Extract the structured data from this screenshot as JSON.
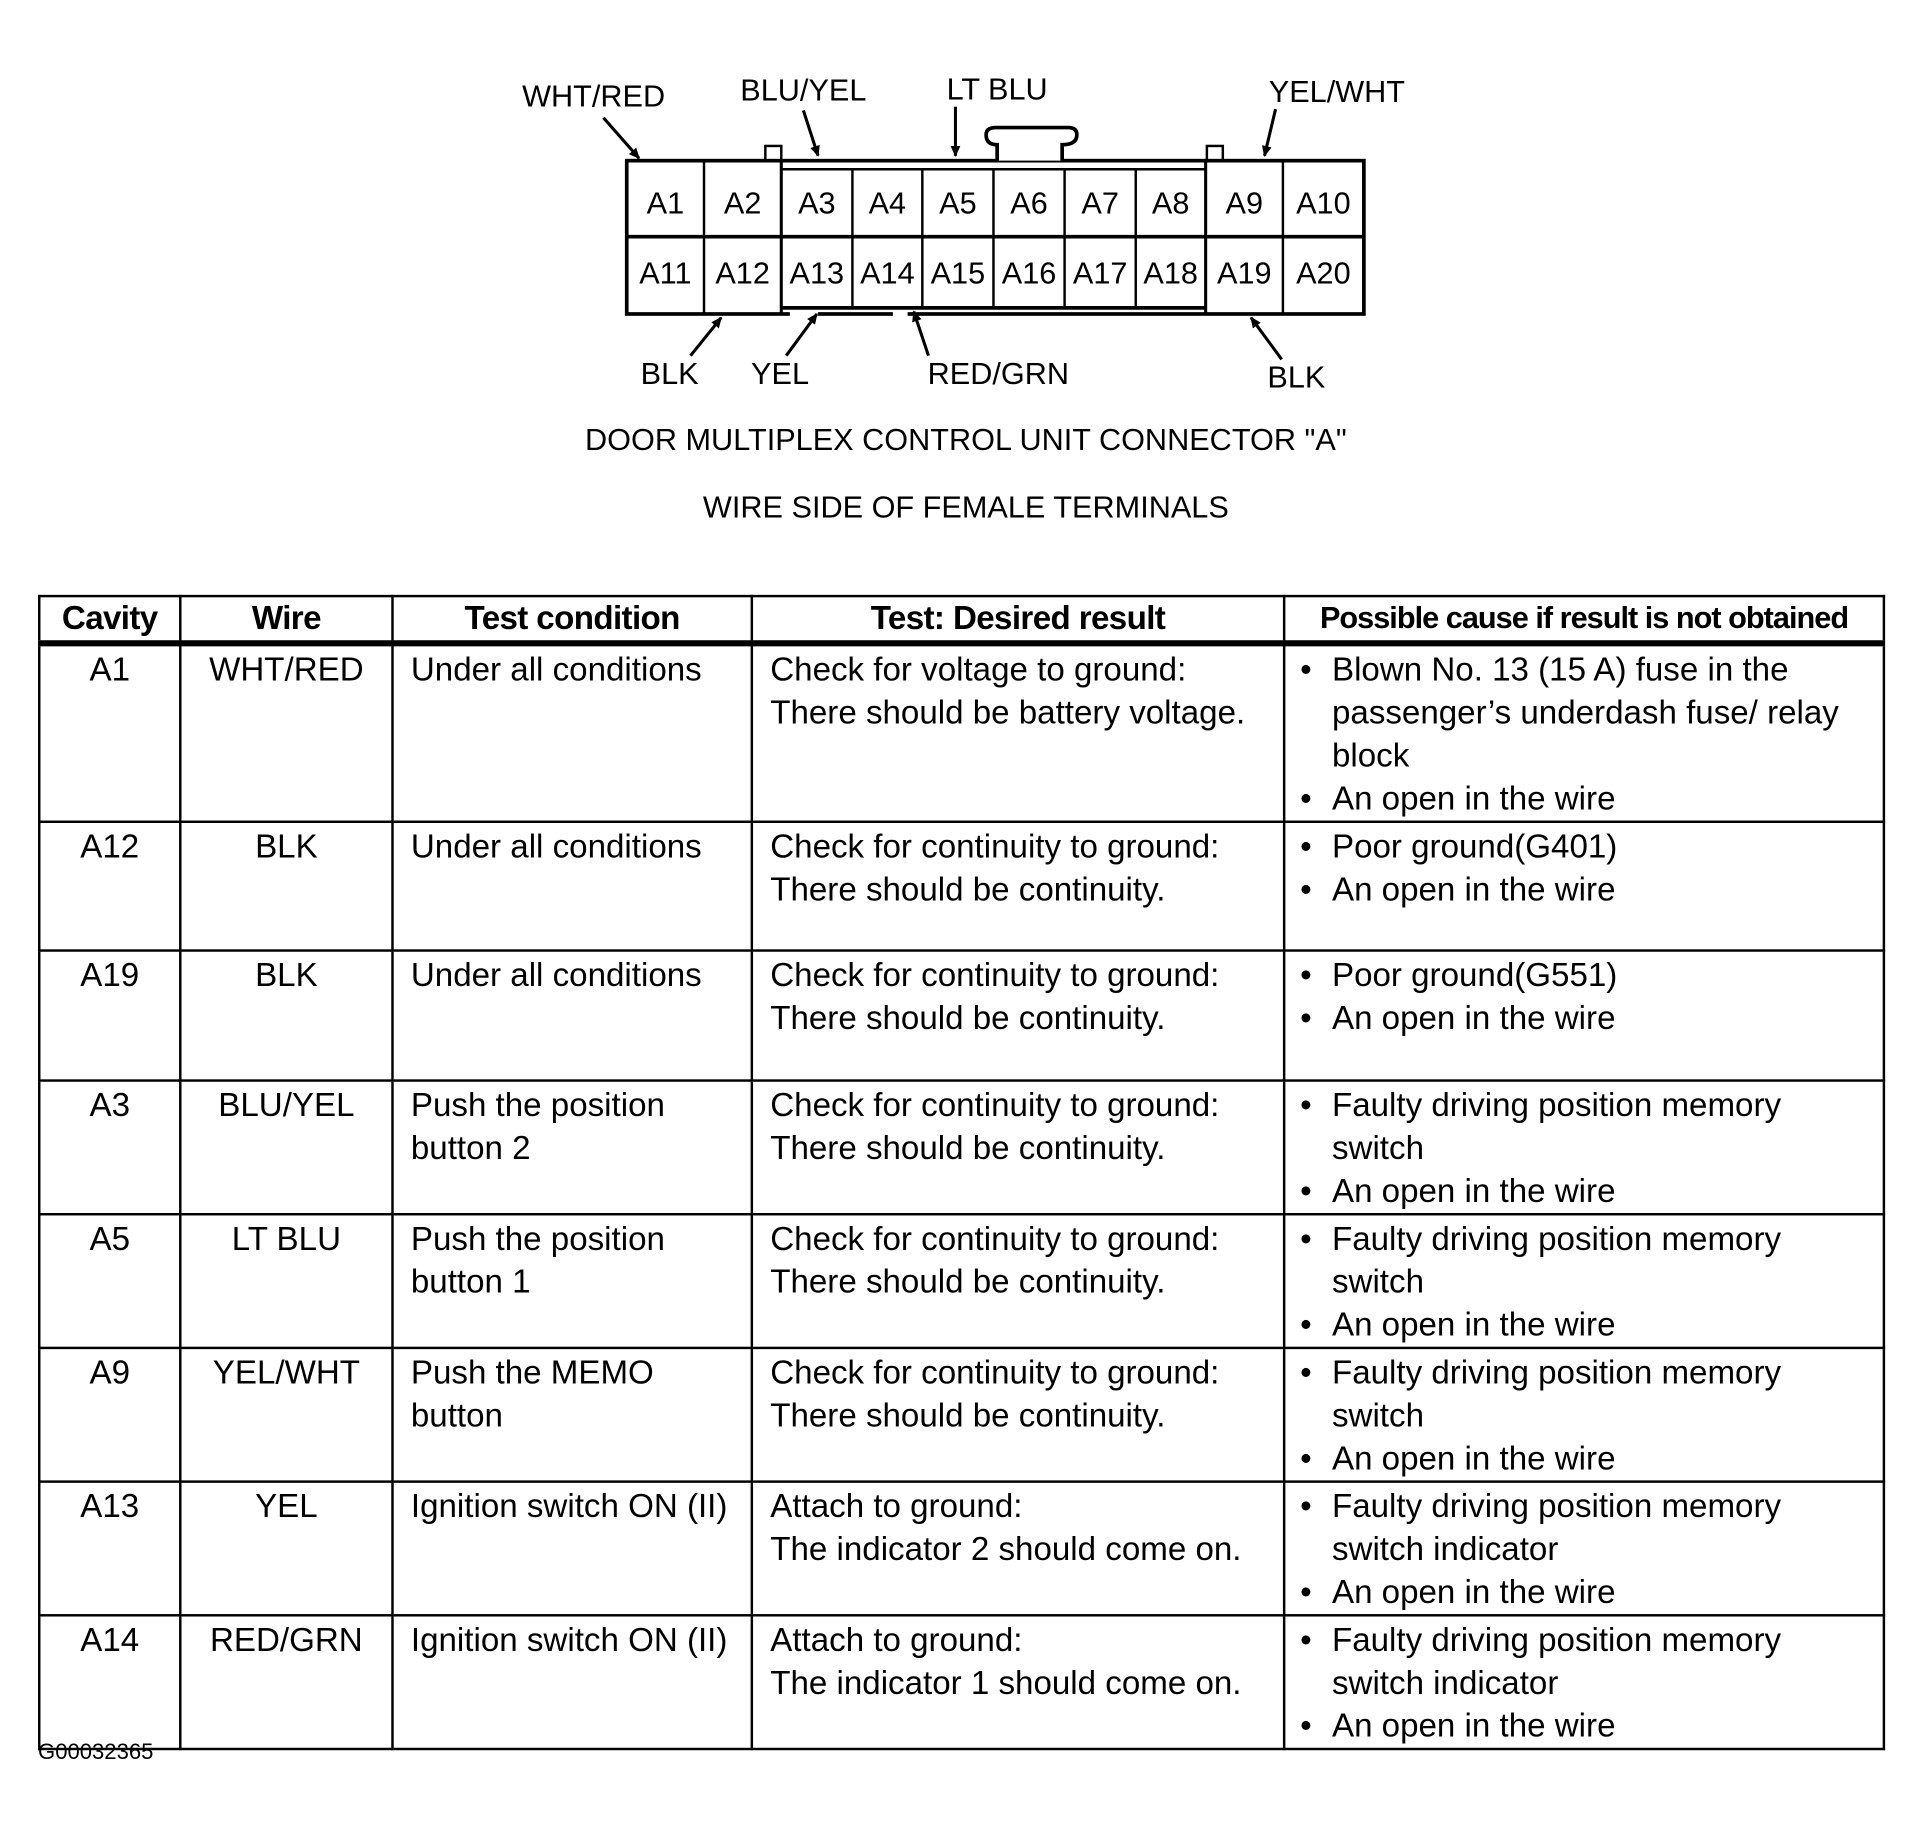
{
  "connector": {
    "top_row": [
      "A1",
      "A2",
      "A3",
      "A4",
      "A5",
      "A6",
      "A7",
      "A8",
      "A9",
      "A10"
    ],
    "bottom_row": [
      "A11",
      "A12",
      "A13",
      "A14",
      "A15",
      "A16",
      "A17",
      "A18",
      "A19",
      "A20"
    ],
    "top_labels": [
      "WHT/RED",
      "BLU/YEL",
      "LT BLU",
      "YEL/WHT"
    ],
    "bottom_labels": [
      "BLK",
      "YEL",
      "RED/GRN",
      "BLK"
    ],
    "caption": "DOOR MULTIPLEX CONTROL UNIT CONNECTOR \"A\"",
    "subcaption": "WIRE SIDE OF FEMALE TERMINALS"
  },
  "table": {
    "headers": [
      "Cavity",
      "Wire",
      "Test condition",
      "Test: Desired result",
      "Possible cause if result is not obtained"
    ],
    "rows": [
      {
        "cavity": "A1",
        "wire": "WHT/RED",
        "condition": "Under all conditions",
        "result": [
          "Check for voltage to ground:",
          "There should be battery voltage."
        ],
        "causes": [
          "Blown No. 13 (15 A) fuse in the passenger’s underdash fuse/ relay block",
          "An open in the wire"
        ]
      },
      {
        "cavity": "A12",
        "wire": "BLK",
        "condition": "Under all conditions",
        "result": [
          "Check for continuity to ground:",
          "There should be continuity."
        ],
        "causes": [
          "Poor ground(G401)",
          "An open in the wire"
        ]
      },
      {
        "cavity": "A19",
        "wire": "BLK",
        "condition": "Under all conditions",
        "result": [
          "Check for continuity to ground:",
          "There should be continuity."
        ],
        "causes": [
          "Poor ground(G551)",
          "An open in the wire"
        ]
      },
      {
        "cavity": "A3",
        "wire": "BLU/YEL",
        "condition": "Push the position button 2",
        "result": [
          "Check for continuity to ground:",
          "There should be continuity."
        ],
        "causes": [
          "Faulty driving position memory switch",
          "An open in the wire"
        ]
      },
      {
        "cavity": "A5",
        "wire": "LT BLU",
        "condition": "Push the position button 1",
        "result": [
          "Check for continuity to ground:",
          "There should be continuity."
        ],
        "causes": [
          "Faulty driving position memory switch",
          "An open in the wire"
        ]
      },
      {
        "cavity": "A9",
        "wire": "YEL/WHT",
        "condition": "Push the MEMO button",
        "result": [
          "Check for continuity to ground:",
          "There should be continuity."
        ],
        "causes": [
          "Faulty driving position memory switch",
          "An open in the wire"
        ]
      },
      {
        "cavity": "A13",
        "wire": "YEL",
        "condition": "Ignition switch ON (II)",
        "result": [
          "Attach to ground:",
          "The indicator 2 should come on."
        ],
        "causes": [
          "Faulty driving position memory switch indicator",
          "An open in the wire"
        ]
      },
      {
        "cavity": "A14",
        "wire": "RED/GRN",
        "condition": "Ignition switch ON (II)",
        "result": [
          "Attach to ground:",
          "The indicator 1 should come on."
        ],
        "causes": [
          "Faulty driving position memory switch indicator",
          "An open in the wire"
        ]
      }
    ]
  },
  "footer": "G00032365"
}
